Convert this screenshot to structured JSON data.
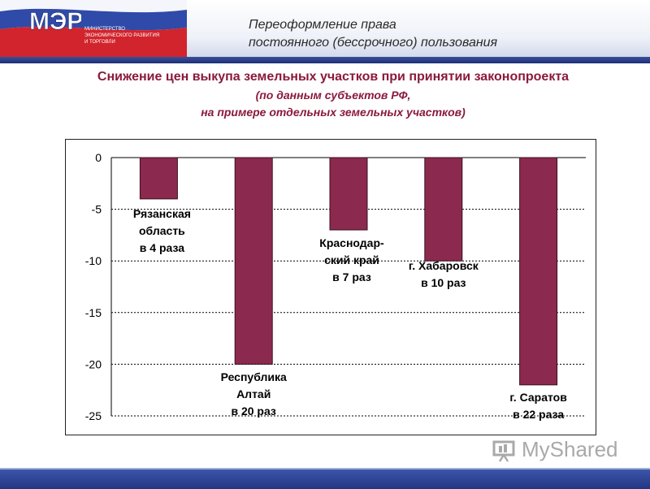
{
  "header": {
    "logo_text": "МЭРТ",
    "ministry_lines": [
      "МИНИСТЕРСТВО",
      "ЭКОНОМИЧЕСКОГО РАЗВИТИЯ",
      "И ТОРГОВЛИ"
    ],
    "title_line1": "Переоформление права",
    "title_line2": "постоянного (бессрочного) пользования"
  },
  "slide": {
    "title": "Снижение цен выкупа земельных участков при принятии законопроекта",
    "subtitle_line1": "(по данным субъектов РФ,",
    "subtitle_line2": "на примере отдельных земельных участков)"
  },
  "watermark": {
    "text": "MyShared",
    "icon": "myshared-logo-icon"
  },
  "colors": {
    "bar": "#8b2a4e",
    "title": "#8a1a3c",
    "header_band": "#1d2f78"
  },
  "chart_data": {
    "type": "bar",
    "categories": [
      "Рязанская область",
      "Республика Алтай",
      "Краснодарский край",
      "г. Хабаровск",
      "г. Саратов"
    ],
    "values": [
      -4,
      -20,
      -7,
      -10,
      -22
    ],
    "labels": [
      [
        "Рязанская",
        "область",
        "в 4 раза"
      ],
      [
        "Республика",
        "Алтай",
        "в 20 раз"
      ],
      [
        "Краснодар-",
        "ский край",
        "в 7 раз"
      ],
      [
        "г. Хабаровск",
        "в 10 раз"
      ],
      [
        "г. Саратов",
        "в 22 раза"
      ]
    ],
    "ylim": [
      -25,
      0
    ],
    "yticks": [
      0,
      -5,
      -10,
      -15,
      -20,
      -25
    ],
    "grid": true,
    "legend": "none"
  }
}
